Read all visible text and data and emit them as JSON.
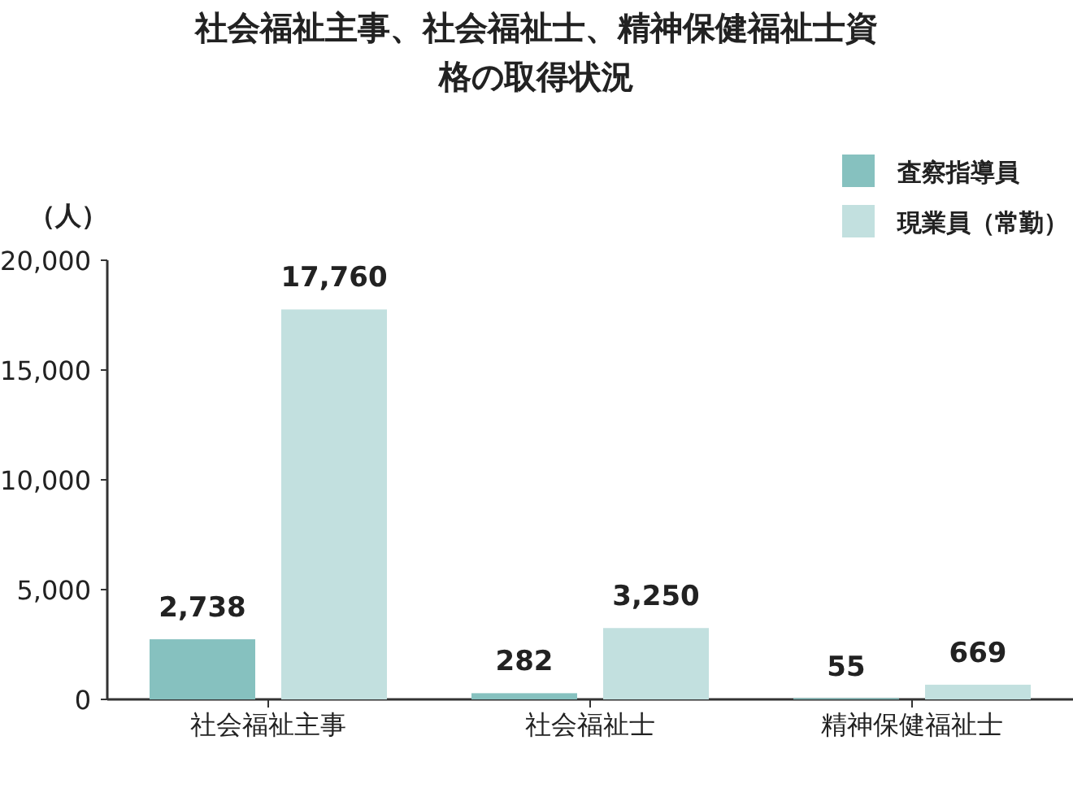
{
  "chart_data": {
    "type": "bar",
    "title": "社会福祉主事、社会福祉士、精神保健福祉士資格の取得状況",
    "ylabel": "（人）",
    "categories": [
      "社会福祉主事",
      "社会福祉士",
      "精神保健福祉士"
    ],
    "series": [
      {
        "name": "査察指導員",
        "color": "#86c1bf",
        "values": [
          2738,
          282,
          55
        ]
      },
      {
        "name": "現業員（常勤）",
        "color": "#c2e0df",
        "values": [
          17760,
          3250,
          669
        ]
      }
    ],
    "ylim": [
      0,
      20000
    ],
    "yticks": [
      {
        "value": 0,
        "label": "0"
      },
      {
        "value": 5000,
        "label": "5,000"
      },
      {
        "value": 10000,
        "label": "10,000"
      },
      {
        "value": 15000,
        "label": "15,000"
      },
      {
        "value": 20000,
        "label": "20,000"
      }
    ],
    "value_labels": [
      [
        "2,738",
        "282",
        "55"
      ],
      [
        "17,760",
        "3,250",
        "669"
      ]
    ],
    "legend": "top right",
    "grid": false
  }
}
